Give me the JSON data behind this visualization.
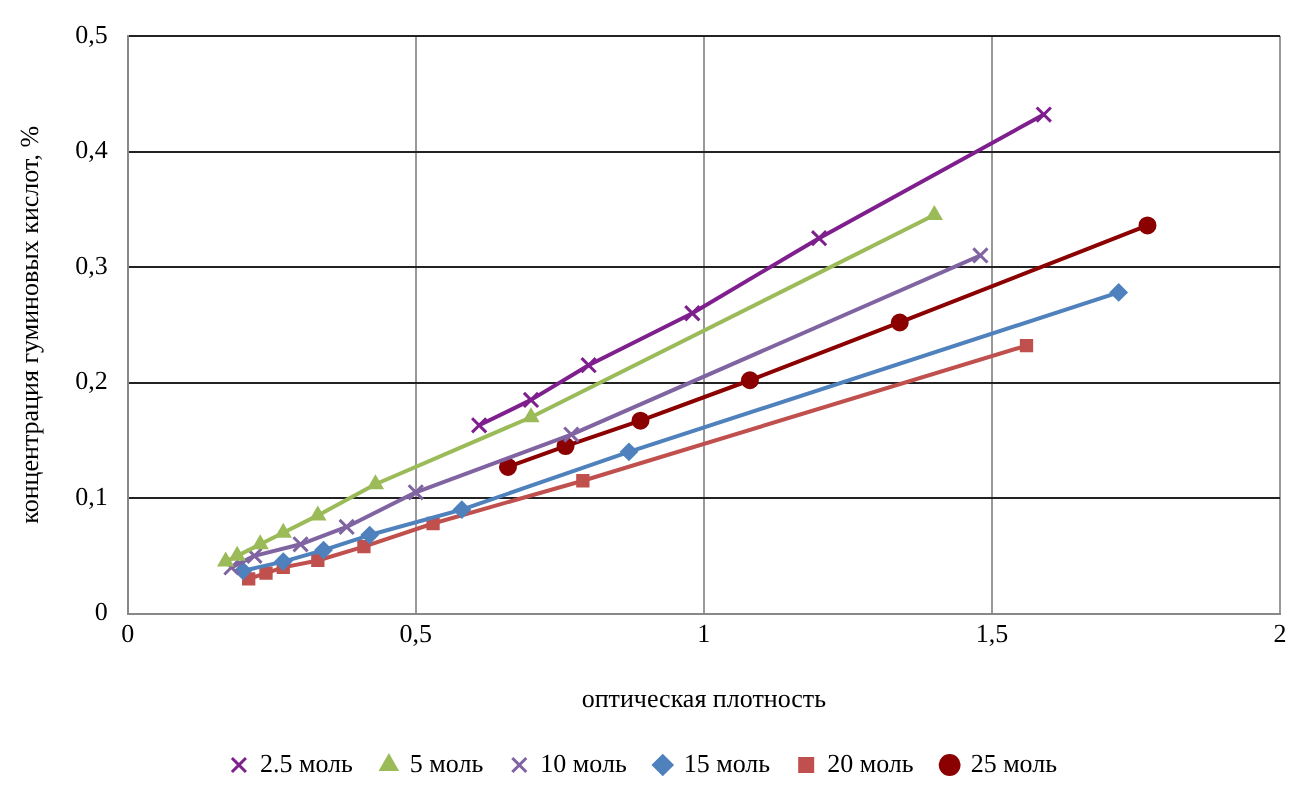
{
  "chart_data": {
    "type": "line",
    "xlabel": "оптическая плотность",
    "ylabel": "концентрация гуминовых кислот, %",
    "xlim": [
      0,
      2
    ],
    "xticks": [
      0,
      {
        "value": 0.5,
        "label": "0,5"
      },
      1,
      {
        "value": 1.5,
        "label": "1,5"
      },
      2
    ],
    "ylim": [
      0,
      0.5
    ],
    "yticks": [
      0,
      {
        "value": 0.1,
        "label": "0,1"
      },
      {
        "value": 0.2,
        "label": "0,2"
      },
      {
        "value": 0.3,
        "label": "0,3"
      },
      {
        "value": 0.4,
        "label": "0,4"
      },
      {
        "value": 0.5,
        "label": "0,5"
      }
    ],
    "grid": true,
    "legend": "bottom",
    "line_style": "solid",
    "series": [
      {
        "name": "2.5 моль",
        "color": "#7f1f8e",
        "marker": "cross",
        "x": [
          0.61,
          0.7,
          0.8,
          0.98,
          1.2,
          1.59
        ],
        "values": [
          0.163,
          0.185,
          0.215,
          0.26,
          0.325,
          0.432
        ]
      },
      {
        "name": "5 моль",
        "color": "#9bbb59",
        "marker": "triangle",
        "x": [
          0.17,
          0.19,
          0.23,
          0.27,
          0.33,
          0.43,
          0.7,
          1.4
        ],
        "values": [
          0.045,
          0.05,
          0.06,
          0.07,
          0.085,
          0.112,
          0.17,
          0.345
        ]
      },
      {
        "name": "10 моль",
        "color": "#8064a2",
        "marker": "cross",
        "x": [
          0.18,
          0.22,
          0.3,
          0.38,
          0.5,
          0.77,
          1.48
        ],
        "values": [
          0.04,
          0.05,
          0.06,
          0.075,
          0.105,
          0.155,
          0.31
        ]
      },
      {
        "name": "15 моль",
        "color": "#4f81bd",
        "marker": "diamond",
        "x": [
          0.2,
          0.27,
          0.34,
          0.42,
          0.58,
          0.87,
          1.72
        ],
        "values": [
          0.037,
          0.045,
          0.055,
          0.068,
          0.09,
          0.14,
          0.278
        ]
      },
      {
        "name": "20 моль",
        "color": "#c0504d",
        "marker": "square",
        "x": [
          0.21,
          0.24,
          0.27,
          0.33,
          0.41,
          0.53,
          0.79,
          1.56
        ],
        "values": [
          0.03,
          0.035,
          0.04,
          0.046,
          0.058,
          0.078,
          0.115,
          0.232
        ]
      },
      {
        "name": "25 моль",
        "color": "#8b0000",
        "marker": "circle",
        "x": [
          0.66,
          0.76,
          0.89,
          1.08,
          1.34,
          1.77
        ],
        "values": [
          0.127,
          0.145,
          0.167,
          0.202,
          0.252,
          0.336
        ]
      }
    ]
  }
}
